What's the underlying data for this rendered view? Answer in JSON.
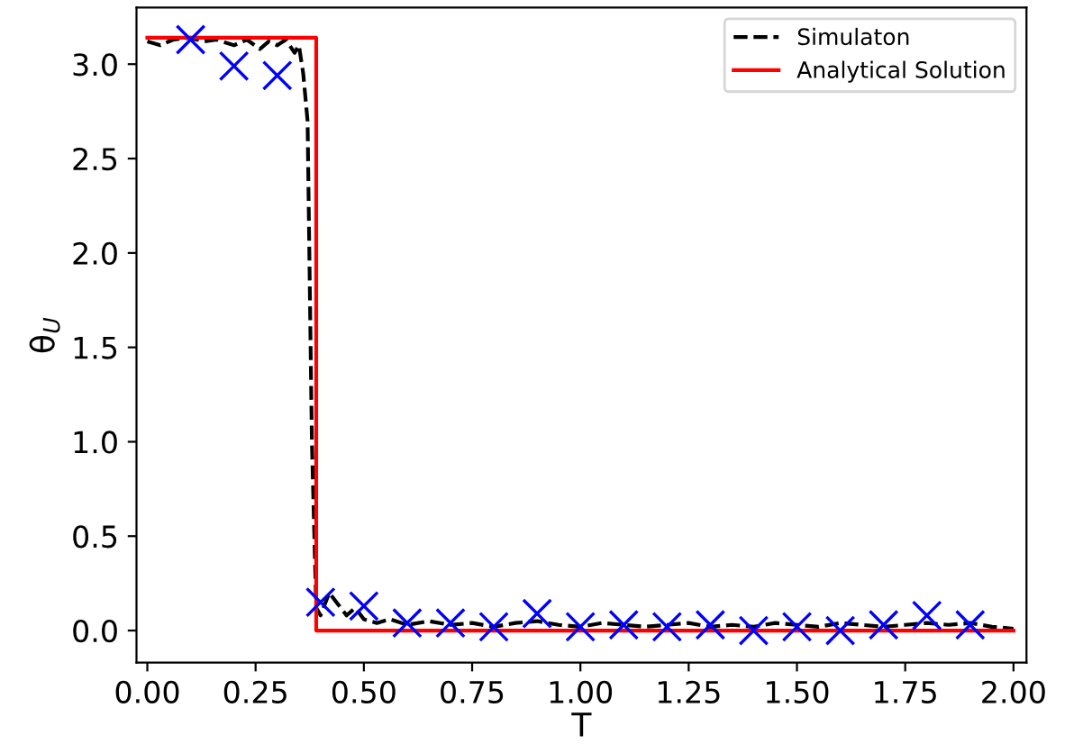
{
  "chart_data": {
    "type": "line",
    "xlabel": "T",
    "ylabel": "θ$_{U}$",
    "xlim": [
      -0.025,
      2.03
    ],
    "ylim": [
      -0.17,
      3.3
    ],
    "xticks": [
      {
        "value": 0,
        "label": "0.00"
      },
      {
        "value": 0.25,
        "label": "0.25"
      },
      {
        "value": 0.5,
        "label": "0.50"
      },
      {
        "value": 0.75,
        "label": "0.75"
      },
      {
        "value": 1,
        "label": "1.00"
      },
      {
        "value": 1.25,
        "label": "1.25"
      },
      {
        "value": 1.5,
        "label": "1.50"
      },
      {
        "value": 1.75,
        "label": "1.75"
      },
      {
        "value": 2,
        "label": "2.00"
      }
    ],
    "yticks": [
      {
        "value": 0,
        "label": "0.0"
      },
      {
        "value": 0.5,
        "label": "0.5"
      },
      {
        "value": 1,
        "label": "1.0"
      },
      {
        "value": 1.5,
        "label": "1.5"
      },
      {
        "value": 2,
        "label": "2.0"
      },
      {
        "value": 2.5,
        "label": "2.5"
      },
      {
        "value": 3,
        "label": "3.0"
      }
    ],
    "legend": "top right",
    "grid": false,
    "series": [
      {
        "type": "scatter",
        "color": "#0000ff",
        "marker": "cross",
        "x": [
          0.1,
          0.2,
          0.3,
          0.4,
          0.5,
          0.6,
          0.7,
          0.8,
          0.9,
          1.0,
          1.1,
          1.2,
          1.3,
          1.4,
          1.5,
          1.6,
          1.7,
          1.8,
          1.9
        ],
        "values": [
          3.13,
          2.99,
          2.94,
          0.15,
          0.13,
          0.04,
          0.04,
          0.02,
          0.09,
          0.02,
          0.03,
          0.02,
          0.03,
          0.0,
          0.02,
          0.0,
          0.03,
          0.08,
          0.03
        ]
      },
      {
        "name": "Simulaton",
        "color": "#000000",
        "line_style": "dashed",
        "x": [
          0.0,
          0.03,
          0.06,
          0.1,
          0.13,
          0.16,
          0.2,
          0.23,
          0.26,
          0.28,
          0.3,
          0.32,
          0.34,
          0.35,
          0.36,
          0.37,
          0.38,
          0.39,
          0.4,
          0.42,
          0.44,
          0.46,
          0.48,
          0.5,
          0.53,
          0.56,
          0.6,
          0.65,
          0.7,
          0.75,
          0.8,
          0.85,
          0.9,
          0.95,
          1.0,
          1.05,
          1.1,
          1.15,
          1.2,
          1.25,
          1.3,
          1.35,
          1.4,
          1.45,
          1.5,
          1.55,
          1.6,
          1.65,
          1.7,
          1.75,
          1.8,
          1.85,
          1.9,
          1.95,
          2.0
        ],
        "values": [
          3.12,
          3.1,
          3.13,
          3.14,
          3.12,
          3.13,
          3.1,
          3.13,
          3.08,
          3.12,
          3.1,
          3.13,
          3.06,
          3.1,
          2.95,
          2.7,
          1.0,
          0.12,
          0.08,
          0.2,
          0.14,
          0.08,
          0.12,
          0.06,
          0.04,
          0.06,
          0.03,
          0.05,
          0.03,
          0.04,
          0.02,
          0.04,
          0.05,
          0.03,
          0.02,
          0.04,
          0.03,
          0.02,
          0.03,
          0.04,
          0.02,
          0.03,
          0.02,
          0.04,
          0.03,
          0.02,
          0.04,
          0.03,
          0.02,
          0.03,
          0.04,
          0.03,
          0.04,
          0.02,
          0.01
        ]
      },
      {
        "name": "Analytical Solution",
        "type": "step",
        "color": "#ff0000",
        "line_style": "solid",
        "x": [
          0.0,
          0.39,
          2.0
        ],
        "values": [
          3.14,
          0.0,
          0.0
        ]
      }
    ]
  }
}
